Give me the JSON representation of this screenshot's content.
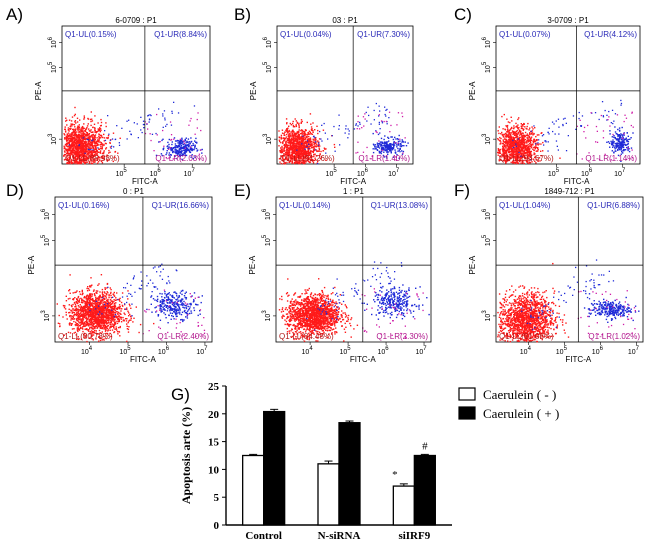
{
  "panels": [
    {
      "label": "A)",
      "title": "6-0709 : P1",
      "ul": "Q1-UL(0.15%)",
      "ur": "Q1-UR(8.84%)",
      "ll": "Q1-LL(88.98%)",
      "lr": "Q1-LR(2.03%)",
      "xlabel": "FITC-A",
      "ylabel": "PE-A",
      "xticks": [
        "10",
        "10",
        "10"
      ],
      "xexps": [
        "5",
        "6",
        "7"
      ],
      "yticks": [
        "10",
        "10",
        "10"
      ],
      "yexps": [
        "3",
        "5",
        "6"
      ]
    },
    {
      "label": "B)",
      "title": "03 : P1",
      "ul": "Q1-UL(0.04%)",
      "ur": "Q1-UR(7.30%)",
      "ll": "Q1-LL(91.26%)",
      "lr": "Q1-LR(1.40%)",
      "xlabel": "FITC-A",
      "ylabel": "PE-A",
      "xticks": [
        "10",
        "10",
        "10"
      ],
      "xexps": [
        "5",
        "6",
        "7"
      ],
      "yticks": [
        "10",
        "10",
        "10"
      ],
      "yexps": [
        "3",
        "5",
        "6"
      ]
    },
    {
      "label": "C)",
      "title": "3-0709 : P1",
      "ul": "Q1-UL(0.07%)",
      "ur": "Q1-UR(4.12%)",
      "ll": "Q1-LL(94.67%)",
      "lr": "Q1-LR(1.14%)",
      "xlabel": "FITC-A",
      "ylabel": "PE-A",
      "xticks": [
        "10",
        "10",
        "10"
      ],
      "xexps": [
        "5",
        "6",
        "7"
      ],
      "yticks": [
        "10",
        "10",
        "10"
      ],
      "yexps": [
        "3",
        "5",
        "6"
      ]
    },
    {
      "label": "D)",
      "title": "0 : P1",
      "ul": "Q1-UL(0.16%)",
      "ur": "Q1-UR(16.66%)",
      "ll": "Q1-LL(80.78%)",
      "lr": "Q1-LR(2.40%)",
      "xlabel": "FITC-A",
      "ylabel": "PE-A",
      "xticks": [
        "10",
        "10",
        "10",
        "10"
      ],
      "xexps": [
        "4",
        "5",
        "6",
        "7"
      ],
      "yticks": [
        "10",
        "10",
        "10"
      ],
      "yexps": [
        "3",
        "5",
        "6"
      ]
    },
    {
      "label": "E)",
      "title": "1 : P1",
      "ul": "Q1-UL(0.14%)",
      "ur": "Q1-UR(13.08%)",
      "ll": "Q1-LL(84.48%)",
      "lr": "Q1-LR(2.30%)",
      "xlabel": "FITC-A",
      "ylabel": "PE-A",
      "xticks": [
        "10",
        "10",
        "10",
        "10"
      ],
      "xexps": [
        "4",
        "5",
        "6",
        "7"
      ],
      "yticks": [
        "10",
        "10",
        "10"
      ],
      "yexps": [
        "3",
        "5",
        "6"
      ]
    },
    {
      "label": "F)",
      "title": "1849-712 : P1",
      "ul": "Q1-UL(1.04%)",
      "ur": "Q1-UR(6.88%)",
      "ll": "Q1-LL(91.06%)",
      "lr": "Q1-LR(1.02%)",
      "xlabel": "FITC-A",
      "ylabel": "PE-A",
      "xticks": [
        "10",
        "10",
        "10",
        "10"
      ],
      "xexps": [
        "4",
        "5",
        "6",
        "7"
      ],
      "yticks": [
        "10",
        "10",
        "10"
      ],
      "yexps": [
        "3",
        "5",
        "6"
      ]
    }
  ],
  "chart_data": {
    "type": "bar",
    "panel_label": "G)",
    "categories": [
      "Control",
      "N-siRNA",
      "siIRF9"
    ],
    "series": [
      {
        "name": "Caerulein ( - )",
        "values": [
          12.5,
          11.0,
          7.0
        ],
        "errors": [
          0.2,
          0.5,
          0.4
        ],
        "color": "#ffffff"
      },
      {
        "name": "Caerulein ( + )",
        "values": [
          20.4,
          18.4,
          12.5
        ],
        "errors": [
          0.4,
          0.3,
          0.2
        ],
        "color": "#000000"
      }
    ],
    "annotations": [
      {
        "series": 0,
        "category": 2,
        "text": "*"
      },
      {
        "series": 1,
        "category": 2,
        "text": "#"
      }
    ],
    "ylabel": "Apoptosis arte (%)",
    "ylim": [
      0,
      25
    ],
    "yticks": [
      0,
      5,
      10,
      15,
      20,
      25
    ]
  }
}
